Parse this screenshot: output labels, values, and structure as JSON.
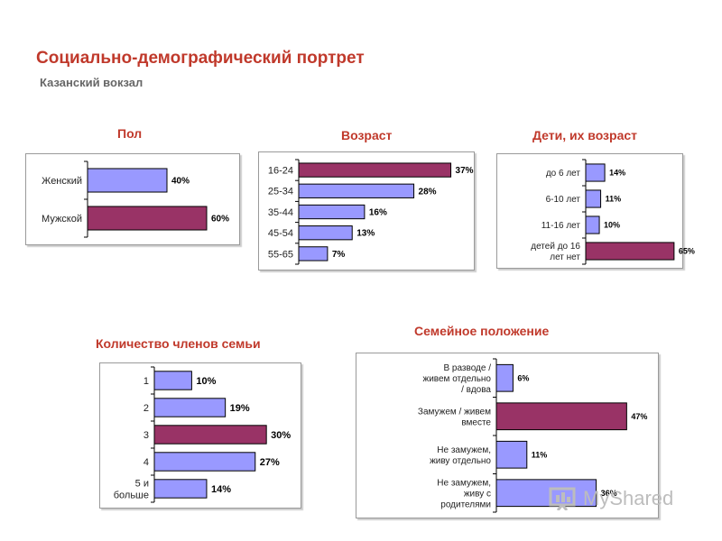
{
  "header": {
    "title": "Социально-демографический портрет",
    "subtitle": "Казанский вокзал"
  },
  "watermark": {
    "text": "MyShared"
  },
  "colors": {
    "title": "#c0392b",
    "bar_default": "#9999ff",
    "bar_highlight": "#993366"
  },
  "chart_data": [
    {
      "id": "gender",
      "type": "bar",
      "orientation": "horizontal",
      "title": "Пол",
      "categories": [
        "Женский",
        "Мужской"
      ],
      "values": [
        40,
        60
      ],
      "value_labels": [
        "40%",
        "60%"
      ],
      "highlight": [
        1
      ],
      "xlim": [
        0,
        75
      ]
    },
    {
      "id": "age",
      "type": "bar",
      "orientation": "horizontal",
      "title": "Возраст",
      "categories": [
        "16-24",
        "25-34",
        "35-44",
        "45-54",
        "55-65"
      ],
      "values": [
        37,
        28,
        16,
        13,
        7
      ],
      "value_labels": [
        "37%",
        "28%",
        "16%",
        "13%",
        "7%"
      ],
      "highlight": [
        0
      ],
      "xlim": [
        0,
        45
      ]
    },
    {
      "id": "children",
      "type": "bar",
      "orientation": "horizontal",
      "title": "Дети, их возраст",
      "categories": [
        "до 6 лет",
        "6-10 лет",
        "11-16 лет",
        "детей до 16 лет нет"
      ],
      "values": [
        14,
        11,
        10,
        65
      ],
      "value_labels": [
        "14%",
        "11%",
        "10%",
        "65%"
      ],
      "highlight": [
        3
      ],
      "xlim": [
        0,
        85
      ]
    },
    {
      "id": "family-size",
      "type": "bar",
      "orientation": "horizontal",
      "title": "Количество членов семьи",
      "categories": [
        "1",
        "2",
        "3",
        "4",
        "5 и больше"
      ],
      "values": [
        10,
        19,
        30,
        27,
        14
      ],
      "value_labels": [
        "10%",
        "19%",
        "30%",
        "27%",
        "14%"
      ],
      "highlight": [
        2
      ],
      "xlim": [
        0,
        43
      ]
    },
    {
      "id": "marital",
      "type": "bar",
      "orientation": "horizontal",
      "title": "Семейное положение",
      "categories": [
        "В разводе / живем отдельно / вдова",
        "Замужем / живем вместе",
        "Не замужем, живу отдельно",
        "Не замужем, живу с родителями"
      ],
      "values": [
        6,
        47,
        11,
        36
      ],
      "value_labels": [
        "6%",
        "47%",
        "11%",
        "36%"
      ],
      "highlight": [
        1
      ],
      "xlim": [
        0,
        56
      ]
    }
  ]
}
